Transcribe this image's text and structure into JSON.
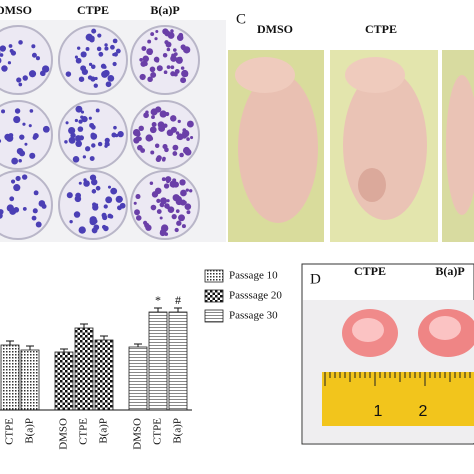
{
  "panel_a": {
    "columns": [
      "DMSO",
      "CTPE",
      "B(a)P"
    ]
  },
  "panel_c": {
    "label": "C",
    "columns": [
      "DMSO",
      "CTPE"
    ]
  },
  "chart_data": {
    "type": "bar",
    "categories": [
      "DMSO",
      "CTPE",
      "B(a)P"
    ],
    "ylim": [
      0,
      120
    ],
    "series": [
      {
        "name": "Passage 10",
        "pattern": "dots",
        "values": [
          null,
          65,
          60
        ],
        "errors": [
          null,
          4,
          4
        ],
        "markers": [
          null,
          null,
          null
        ]
      },
      {
        "name": "Passsage 20",
        "pattern": "crosshatch",
        "values": [
          58,
          82,
          70
        ],
        "errors": [
          3,
          4,
          4
        ],
        "markers": [
          null,
          null,
          null
        ]
      },
      {
        "name": "Passage 30",
        "pattern": "lines",
        "values": [
          63,
          98,
          98
        ],
        "errors": [
          3,
          4,
          4
        ],
        "markers": [
          null,
          "*",
          "#"
        ]
      }
    ]
  },
  "panel_d": {
    "label": "D",
    "columns": [
      "CTPE",
      "B(a)P"
    ],
    "ruler": [
      1,
      2
    ]
  }
}
